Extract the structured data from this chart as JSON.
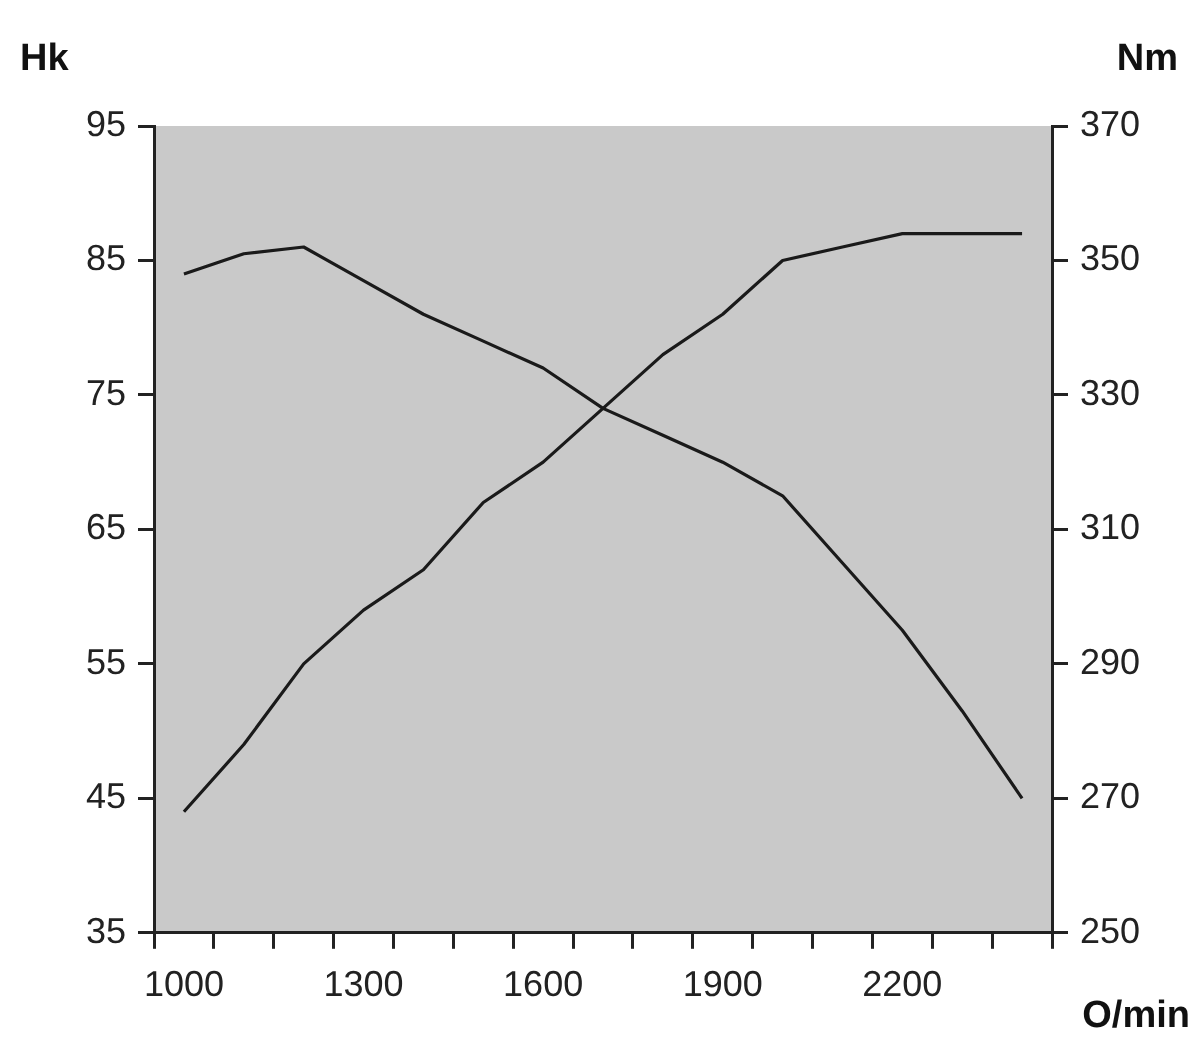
{
  "chart_data": {
    "type": "line",
    "xlabel": "O/min",
    "ylabel": "Hk",
    "y2label": "Nm",
    "categories": [
      "1000",
      null,
      null,
      "1300",
      null,
      null,
      "1600",
      null,
      null,
      "1900",
      null,
      null,
      "2200",
      null,
      null
    ],
    "series": [
      {
        "color": "#1a1a1a",
        "axis": "y",
        "values": [
          44,
          49,
          55,
          59,
          62,
          67,
          70,
          74,
          78,
          81,
          85,
          86,
          87,
          87,
          87
        ]
      },
      {
        "color": "#1a1a1a",
        "axis": "y2",
        "values": [
          348,
          351,
          352,
          347,
          342,
          338,
          334,
          328,
          324,
          320,
          315,
          305,
          295,
          283,
          270
        ]
      }
    ],
    "ylim": [
      35,
      95
    ],
    "yticks": [
      35,
      45,
      55,
      65,
      75,
      85,
      95
    ],
    "y2lim": [
      250,
      370
    ],
    "y2ticks": [
      250,
      270,
      290,
      310,
      330,
      350,
      370
    ],
    "grid": false,
    "legend": false,
    "marker": "none"
  }
}
